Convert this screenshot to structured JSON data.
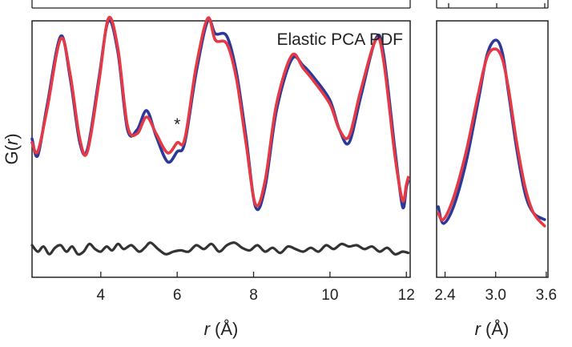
{
  "chart_data": [
    {
      "type": "line",
      "title": "",
      "annotation": "Elastic PCA PDF",
      "marker_label": "*",
      "marker_x": 6.0,
      "xlabel_var": "r",
      "xlabel_unit": " (Å)",
      "ylabel_fn": "G(",
      "ylabel_var": "r",
      "ylabel_close": ")",
      "xlim": [
        2.2,
        12.1
      ],
      "ylim": [
        -1.0,
        1.0
      ],
      "xticks": [
        4,
        6,
        8,
        10,
        12
      ],
      "xtick_labels": [
        "4",
        "6",
        "8",
        "10",
        "12"
      ],
      "grid": false,
      "legend": "none",
      "series": [
        {
          "role": "data",
          "color": "#2b3a9a",
          "points": [
            [
              2.2,
              0.08
            ],
            [
              2.35,
              -0.05
            ],
            [
              2.6,
              0.35
            ],
            [
              2.95,
              0.88
            ],
            [
              3.2,
              0.55
            ],
            [
              3.45,
              0.05
            ],
            [
              3.65,
              0.0
            ],
            [
              3.95,
              0.55
            ],
            [
              4.2,
              1.0
            ],
            [
              4.45,
              0.75
            ],
            [
              4.7,
              0.15
            ],
            [
              4.95,
              0.15
            ],
            [
              5.2,
              0.3
            ],
            [
              5.45,
              0.1
            ],
            [
              5.75,
              -0.1
            ],
            [
              6.0,
              -0.02
            ],
            [
              6.2,
              0.05
            ],
            [
              6.5,
              0.6
            ],
            [
              6.8,
              1.0
            ],
            [
              7.0,
              0.9
            ],
            [
              7.3,
              0.88
            ],
            [
              7.55,
              0.6
            ],
            [
              7.8,
              0.1
            ],
            [
              8.05,
              -0.45
            ],
            [
              8.3,
              -0.3
            ],
            [
              8.6,
              0.3
            ],
            [
              9.0,
              0.7
            ],
            [
              9.3,
              0.65
            ],
            [
              9.6,
              0.55
            ],
            [
              10.0,
              0.38
            ],
            [
              10.25,
              0.15
            ],
            [
              10.5,
              0.05
            ],
            [
              10.8,
              0.4
            ],
            [
              11.2,
              0.86
            ],
            [
              11.4,
              0.75
            ],
            [
              11.7,
              0.0
            ],
            [
              11.9,
              -0.45
            ],
            [
              12.0,
              -0.3
            ],
            [
              12.05,
              -0.25
            ]
          ]
        },
        {
          "role": "fit",
          "color": "#e53945",
          "points": [
            [
              2.2,
              0.05
            ],
            [
              2.35,
              -0.02
            ],
            [
              2.6,
              0.32
            ],
            [
              2.95,
              0.86
            ],
            [
              3.2,
              0.58
            ],
            [
              3.45,
              0.08
            ],
            [
              3.65,
              -0.02
            ],
            [
              3.95,
              0.52
            ],
            [
              4.2,
              1.02
            ],
            [
              4.45,
              0.78
            ],
            [
              4.7,
              0.18
            ],
            [
              4.95,
              0.12
            ],
            [
              5.2,
              0.25
            ],
            [
              5.45,
              0.12
            ],
            [
              5.75,
              -0.03
            ],
            [
              6.0,
              0.05
            ],
            [
              6.2,
              0.08
            ],
            [
              6.5,
              0.65
            ],
            [
              6.8,
              1.02
            ],
            [
              7.0,
              0.85
            ],
            [
              7.3,
              0.82
            ],
            [
              7.55,
              0.55
            ],
            [
              7.8,
              0.05
            ],
            [
              8.05,
              -0.43
            ],
            [
              8.3,
              -0.25
            ],
            [
              8.6,
              0.35
            ],
            [
              9.0,
              0.73
            ],
            [
              9.3,
              0.63
            ],
            [
              9.6,
              0.52
            ],
            [
              10.0,
              0.35
            ],
            [
              10.25,
              0.15
            ],
            [
              10.5,
              0.1
            ],
            [
              10.8,
              0.45
            ],
            [
              11.2,
              0.85
            ],
            [
              11.4,
              0.7
            ],
            [
              11.7,
              -0.05
            ],
            [
              11.9,
              -0.4
            ],
            [
              12.0,
              -0.28
            ],
            [
              12.05,
              -0.22
            ]
          ]
        },
        {
          "role": "difference",
          "color": "#333333",
          "points": [
            [
              2.2,
              -0.75
            ],
            [
              2.35,
              -0.8
            ],
            [
              2.5,
              -0.76
            ],
            [
              2.65,
              -0.82
            ],
            [
              2.8,
              -0.77
            ],
            [
              2.95,
              -0.75
            ],
            [
              3.1,
              -0.8
            ],
            [
              3.25,
              -0.76
            ],
            [
              3.4,
              -0.82
            ],
            [
              3.55,
              -0.8
            ],
            [
              3.7,
              -0.74
            ],
            [
              3.85,
              -0.78
            ],
            [
              4.0,
              -0.8
            ],
            [
              4.15,
              -0.76
            ],
            [
              4.3,
              -0.79
            ],
            [
              4.45,
              -0.74
            ],
            [
              4.6,
              -0.78
            ],
            [
              4.8,
              -0.75
            ],
            [
              5.0,
              -0.8
            ],
            [
              5.15,
              -0.77
            ],
            [
              5.3,
              -0.73
            ],
            [
              5.5,
              -0.78
            ],
            [
              5.7,
              -0.82
            ],
            [
              5.9,
              -0.8
            ],
            [
              6.1,
              -0.79
            ],
            [
              6.3,
              -0.8
            ],
            [
              6.5,
              -0.75
            ],
            [
              6.7,
              -0.78
            ],
            [
              6.9,
              -0.74
            ],
            [
              7.1,
              -0.8
            ],
            [
              7.3,
              -0.75
            ],
            [
              7.5,
              -0.73
            ],
            [
              7.7,
              -0.77
            ],
            [
              7.9,
              -0.79
            ],
            [
              8.1,
              -0.75
            ],
            [
              8.3,
              -0.8
            ],
            [
              8.5,
              -0.77
            ],
            [
              8.7,
              -0.81
            ],
            [
              8.9,
              -0.76
            ],
            [
              9.1,
              -0.78
            ],
            [
              9.3,
              -0.8
            ],
            [
              9.5,
              -0.77
            ],
            [
              9.7,
              -0.8
            ],
            [
              9.9,
              -0.75
            ],
            [
              10.1,
              -0.78
            ],
            [
              10.3,
              -0.74
            ],
            [
              10.5,
              -0.76
            ],
            [
              10.7,
              -0.75
            ],
            [
              10.9,
              -0.78
            ],
            [
              11.1,
              -0.76
            ],
            [
              11.3,
              -0.8
            ],
            [
              11.5,
              -0.77
            ],
            [
              11.7,
              -0.82
            ],
            [
              11.9,
              -0.8
            ],
            [
              12.05,
              -0.81
            ]
          ]
        }
      ]
    },
    {
      "type": "line",
      "title": "",
      "xlabel_var": "r",
      "xlabel_unit": " (Å)",
      "xlim": [
        2.3,
        3.62
      ],
      "ylim": [
        -1.0,
        1.0
      ],
      "xticks": [
        2.4,
        3.0,
        3.6
      ],
      "xtick_labels": [
        "2.4",
        "3.0",
        "3.6"
      ],
      "grid": false,
      "legend": "none",
      "series": [
        {
          "role": "data",
          "color": "#2b3a9a",
          "points": [
            [
              2.32,
              -0.45
            ],
            [
              2.38,
              -0.58
            ],
            [
              2.5,
              -0.45
            ],
            [
              2.65,
              -0.1
            ],
            [
              2.8,
              0.4
            ],
            [
              2.9,
              0.74
            ],
            [
              3.0,
              0.85
            ],
            [
              3.08,
              0.75
            ],
            [
              3.15,
              0.45
            ],
            [
              3.25,
              0.0
            ],
            [
              3.35,
              -0.35
            ],
            [
              3.45,
              -0.5
            ],
            [
              3.58,
              -0.55
            ]
          ]
        },
        {
          "role": "fit",
          "color": "#e53945",
          "points": [
            [
              2.32,
              -0.5
            ],
            [
              2.38,
              -0.55
            ],
            [
              2.5,
              -0.38
            ],
            [
              2.65,
              -0.02
            ],
            [
              2.8,
              0.45
            ],
            [
              2.9,
              0.72
            ],
            [
              3.0,
              0.78
            ],
            [
              3.08,
              0.7
            ],
            [
              3.15,
              0.48
            ],
            [
              3.25,
              0.05
            ],
            [
              3.35,
              -0.3
            ],
            [
              3.45,
              -0.5
            ],
            [
              3.58,
              -0.6
            ]
          ]
        }
      ]
    }
  ]
}
